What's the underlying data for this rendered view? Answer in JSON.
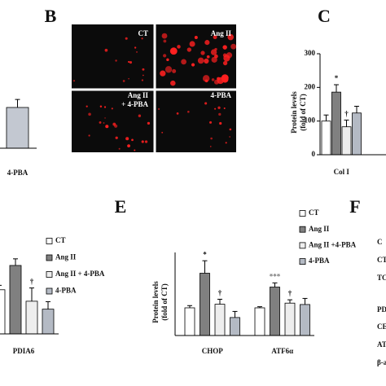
{
  "panel_letters": [
    "B",
    "C",
    "E",
    "F"
  ],
  "micrograph": {
    "labels": [
      [
        "CT"
      ],
      [
        "Ang II"
      ],
      [
        "Ang II",
        "+ 4-PBA"
      ],
      [
        "4-PBA"
      ]
    ]
  },
  "panel_f_labels": [
    "C",
    "CT",
    "TC",
    "PD",
    "CE",
    "AT",
    "β-a"
  ],
  "chart_data": [
    {
      "type": "bar",
      "categories": [
        "4-PBA"
      ],
      "ylim": [
        0,
        200
      ],
      "series": [
        {
          "color": "#c3c8d1",
          "values": [
            122
          ],
          "errors": [
            24
          ]
        }
      ]
    },
    {
      "type": "bar",
      "categories": [
        "Col I"
      ],
      "ylabel": [
        "Protein levels",
        "(fold of CT)"
      ],
      "ylim": [
        0,
        300
      ],
      "yticks": [
        0,
        100,
        200,
        300
      ],
      "series": [
        {
          "color": "#ffffff",
          "values": [
            100
          ],
          "errors": [
            18
          ]
        },
        {
          "color": "#808080",
          "values": [
            186
          ],
          "errors": [
            22
          ],
          "markers": [
            "*"
          ]
        },
        {
          "color": "#eeeeee",
          "values": [
            83
          ],
          "errors": [
            20
          ],
          "markers": [
            "†"
          ]
        },
        {
          "color": "#b4bac4",
          "values": [
            124
          ],
          "errors": [
            20
          ]
        }
      ]
    },
    {
      "type": "bar",
      "categories": [
        "PDIA6"
      ],
      "ylim": [
        0,
        190
      ],
      "series": [
        {
          "name": "CT",
          "color": "#ffffff",
          "values": [
            100
          ],
          "errors": [
            10
          ]
        },
        {
          "name": "Ang II",
          "color": "#808080",
          "values": [
            155
          ],
          "errors": [
            15
          ]
        },
        {
          "name": "Ang II + 4-PBA",
          "color": "#eeeeee",
          "values": [
            74
          ],
          "errors": [
            30
          ],
          "markers": [
            "†"
          ]
        },
        {
          "name": "4-PBA",
          "color": "#b4bac4",
          "values": [
            56
          ],
          "errors": [
            17
          ]
        }
      ]
    },
    {
      "type": "bar",
      "categories": [
        "CHOP",
        "ATF6α"
      ],
      "ylabel": [
        "Protein levels",
        "(fold of CT)"
      ],
      "ylim": [
        0,
        300
      ],
      "series": [
        {
          "name": "CT",
          "color": "#ffffff",
          "values": [
            100,
            100
          ],
          "errors": [
            8,
            4
          ]
        },
        {
          "name": "Ang II",
          "color": "#808080",
          "values": [
            225,
            175
          ],
          "errors": [
            45,
            15
          ],
          "markers": [
            "*",
            "***"
          ]
        },
        {
          "name": "Ang II +4-PBA",
          "color": "#eeeeee",
          "values": [
            113,
            117
          ],
          "errors": [
            18,
            12
          ],
          "markers": [
            "†",
            "†"
          ]
        },
        {
          "name": "4-PBA",
          "color": "#b4bac4",
          "values": [
            65,
            112
          ],
          "errors": [
            22,
            22
          ]
        }
      ]
    }
  ]
}
